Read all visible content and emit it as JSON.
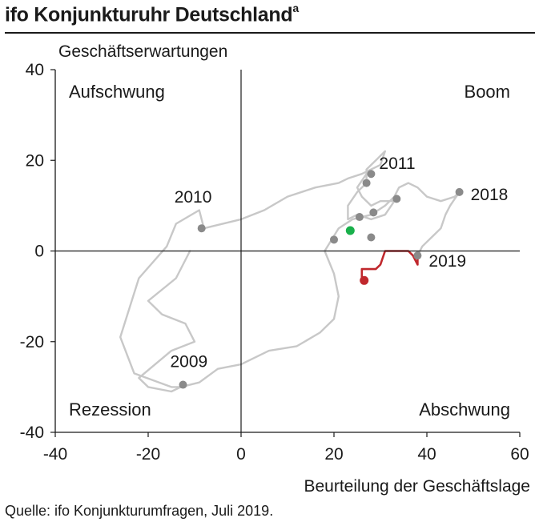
{
  "header": {
    "title": "ifo Konjunkturuhr Deutschland",
    "title_superscript": "a"
  },
  "footer": {
    "source": "Quelle:  ifo Konjunkturumfragen,  Juli 2019."
  },
  "colors": {
    "path": "#c8c8c8",
    "markers": "#8a8a8a",
    "recent": "#c0282d",
    "highlight": "#19b04b",
    "axis": "#1a1a1a"
  },
  "chart_data": {
    "type": "line",
    "title": "ifo Konjunkturuhr Deutschland",
    "xlabel": "Beurteilung der Geschäftslage",
    "ylabel": "Geschäftserwartungen",
    "xlim": [
      -40,
      60
    ],
    "ylim": [
      -40,
      40
    ],
    "xticks": [
      -40,
      -20,
      0,
      20,
      40,
      60
    ],
    "yticks": [
      -40,
      -20,
      0,
      20,
      40
    ],
    "quadrant_labels": {
      "top_left": "Aufschwung",
      "top_right": "Boom",
      "bottom_left": "Rezession",
      "bottom_right": "Abschwung"
    },
    "series": [
      {
        "style": "history",
        "points": [
          [
            -11,
            0
          ],
          [
            -14,
            -6
          ],
          [
            -20,
            -11
          ],
          [
            -17,
            -14
          ],
          [
            -12,
            -16
          ],
          [
            -10,
            -20
          ],
          [
            -15,
            -22
          ],
          [
            -22,
            -28
          ],
          [
            -20,
            -30
          ],
          [
            -15,
            -31
          ],
          [
            -13,
            -30
          ],
          [
            -9,
            -29
          ],
          [
            -5,
            -26
          ],
          [
            0,
            -25
          ],
          [
            6,
            -22
          ],
          [
            12,
            -21
          ],
          [
            17,
            -18
          ],
          [
            20,
            -15
          ],
          [
            21,
            -10
          ],
          [
            20,
            -5
          ],
          [
            18,
            0
          ],
          [
            21,
            5
          ],
          [
            24,
            7
          ],
          [
            28,
            8
          ],
          [
            31,
            10
          ],
          [
            33,
            12
          ],
          [
            34,
            14
          ],
          [
            36,
            15
          ],
          [
            38,
            14
          ],
          [
            40,
            12
          ],
          [
            43,
            11
          ],
          [
            46,
            12
          ],
          [
            47,
            13
          ],
          [
            45,
            10
          ],
          [
            44,
            8
          ],
          [
            43,
            5
          ],
          [
            41,
            3
          ],
          [
            39,
            1
          ],
          [
            38,
            -1
          ]
        ]
      },
      {
        "style": "early",
        "points": [
          [
            -13,
            -30
          ],
          [
            -15,
            -30
          ],
          [
            -23,
            -27
          ],
          [
            -26,
            -19
          ],
          [
            -22,
            -6
          ],
          [
            -16,
            1
          ],
          [
            -14,
            6
          ],
          [
            -9,
            9
          ],
          [
            -8,
            5
          ],
          [
            0,
            7
          ],
          [
            5,
            9
          ],
          [
            10,
            12
          ],
          [
            16,
            14
          ],
          [
            21,
            15
          ],
          [
            23,
            16
          ],
          [
            26,
            17
          ],
          [
            30,
            19
          ],
          [
            31,
            22
          ],
          [
            29,
            20
          ],
          [
            27,
            18
          ],
          [
            27,
            15
          ],
          [
            25,
            13
          ],
          [
            23,
            10
          ],
          [
            23,
            7
          ],
          [
            25,
            8
          ],
          [
            28,
            7
          ],
          [
            31,
            8
          ],
          [
            33,
            11
          ],
          [
            30,
            11
          ],
          [
            28,
            10
          ],
          [
            26,
            12
          ],
          [
            25,
            14
          ],
          [
            27,
            17
          ]
        ]
      },
      {
        "style": "recent",
        "points": [
          [
            38,
            -1
          ],
          [
            38,
            -2
          ],
          [
            38,
            -3
          ],
          [
            37,
            -1
          ],
          [
            36,
            0
          ],
          [
            31,
            0
          ],
          [
            30,
            -3
          ],
          [
            29,
            -4
          ],
          [
            26,
            -4
          ],
          [
            26,
            -6
          ],
          [
            26.5,
            -6.5
          ]
        ]
      }
    ],
    "labeled_points": [
      {
        "x": -8.5,
        "y": 5,
        "label": "2010"
      },
      {
        "x": -12.5,
        "y": -29.5,
        "label": "2009"
      },
      {
        "x": 28,
        "y": 17,
        "label": "2011"
      },
      {
        "x": 47,
        "y": 13,
        "label": "2018"
      },
      {
        "x": 38,
        "y": -1,
        "label": "2019"
      }
    ],
    "unlabeled_points": [
      {
        "x": 27,
        "y": 15
      },
      {
        "x": 25.5,
        "y": 7.5
      },
      {
        "x": 28.5,
        "y": 8.5
      },
      {
        "x": 33.5,
        "y": 11.5
      },
      {
        "x": 20,
        "y": 2.5
      },
      {
        "x": 28,
        "y": 3
      }
    ],
    "highlight_point": {
      "x": 23.5,
      "y": 4.5
    },
    "latest_point": {
      "x": 26.5,
      "y": -6.5
    }
  }
}
